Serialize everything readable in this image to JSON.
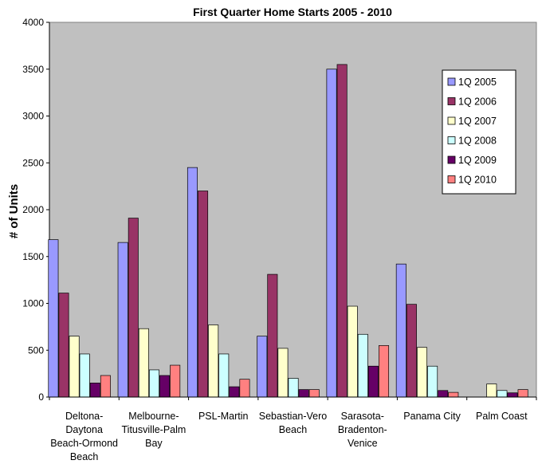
{
  "chart_data": {
    "type": "bar",
    "title": "First Quarter Home Starts 2005 - 2010",
    "xlabel": "",
    "ylabel": "# of Units",
    "ylim": [
      0,
      4000
    ],
    "yticks": [
      0,
      500,
      1000,
      1500,
      2000,
      2500,
      3000,
      3500,
      4000
    ],
    "grid": false,
    "legend_position": "top-right",
    "plot_background": "#c0c0c0",
    "categories": [
      [
        "Deltona-",
        "Daytona",
        "Beach-Ormond",
        "Beach"
      ],
      [
        "Melbourne-",
        "Titusville-Palm",
        "Bay"
      ],
      [
        "PSL-Martin"
      ],
      [
        "Sebastian-Vero",
        "Beach"
      ],
      [
        "Sarasota-",
        "Bradenton-",
        "Venice"
      ],
      [
        "Panama City"
      ],
      [
        "Palm Coast"
      ]
    ],
    "series": [
      {
        "name": "1Q 2005",
        "color": "#9999ff",
        "values": [
          1680,
          1650,
          2450,
          650,
          3500,
          1420,
          0
        ]
      },
      {
        "name": "1Q 2006",
        "color": "#993366",
        "values": [
          1110,
          1910,
          2200,
          1310,
          3550,
          990,
          0
        ]
      },
      {
        "name": "1Q 2007",
        "color": "#ffffcc",
        "values": [
          650,
          730,
          770,
          520,
          970,
          530,
          140
        ]
      },
      {
        "name": "1Q 2008",
        "color": "#ccffff",
        "values": [
          460,
          290,
          460,
          200,
          670,
          330,
          70
        ]
      },
      {
        "name": "1Q 2009",
        "color": "#660066",
        "values": [
          150,
          230,
          110,
          80,
          330,
          70,
          45
        ]
      },
      {
        "name": "1Q 2010",
        "color": "#ff8080",
        "values": [
          230,
          340,
          190,
          80,
          550,
          50,
          80
        ]
      }
    ]
  }
}
